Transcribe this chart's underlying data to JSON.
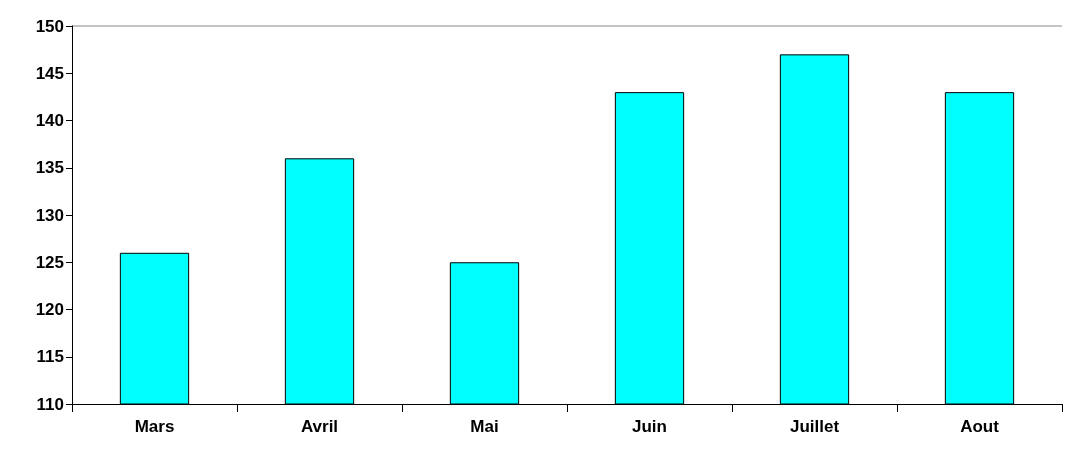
{
  "chart_data": {
    "type": "bar",
    "categories": [
      "Mars",
      "Avril",
      "Mai",
      "Juin",
      "Juillet",
      "Aout"
    ],
    "values": [
      126,
      136,
      125,
      143,
      147,
      143
    ],
    "color": "#00ffff",
    "ylim": [
      110,
      150
    ],
    "yticks": [
      110,
      115,
      120,
      125,
      130,
      135,
      140,
      145,
      150
    ],
    "grid": false
  }
}
